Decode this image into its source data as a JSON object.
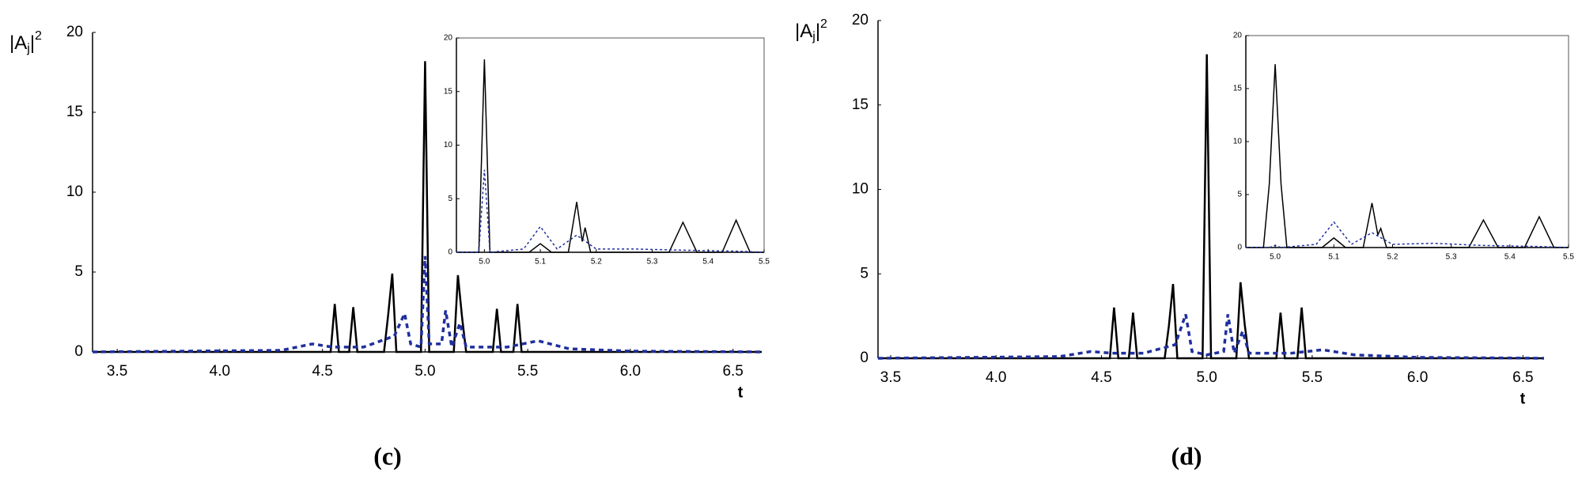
{
  "chart_data": [
    {
      "type": "line",
      "caption": "(c)",
      "ylabel": [
        "|A",
        "j",
        "|",
        "2"
      ],
      "xlabel": "t",
      "xlim": [
        3.38,
        6.64
      ],
      "ylim": [
        0,
        20
      ],
      "xticks": [
        3.5,
        {
          "value": 4,
          "label": "4.0"
        },
        4.5,
        {
          "value": 5,
          "label": "5.0"
        },
        5.5,
        {
          "value": 6,
          "label": "6.0"
        },
        6.5
      ],
      "yticks": [
        0,
        5,
        10,
        15,
        20
      ],
      "series": [
        {
          "color": "#000000",
          "line_style": "solid",
          "x": [
            3.38,
            4.5,
            4.54,
            4.56,
            4.58,
            4.63,
            4.65,
            4.67,
            4.8,
            4.82,
            4.84,
            4.86,
            4.98,
            5.0,
            5.02,
            5.14,
            5.16,
            5.18,
            5.2,
            5.33,
            5.35,
            5.37,
            5.43,
            5.45,
            5.47,
            6.64
          ],
          "values": [
            0,
            0,
            0,
            3,
            0,
            0,
            2.8,
            0,
            0,
            2.3,
            4.9,
            0,
            0,
            18.2,
            0,
            0,
            4.8,
            2.2,
            0,
            0,
            2.7,
            0,
            0,
            3,
            0,
            0
          ]
        },
        {
          "color": "#1f2f9e",
          "line_style": "dashed",
          "x": [
            3.38,
            4.3,
            4.45,
            4.55,
            4.7,
            4.85,
            4.9,
            4.93,
            4.98,
            5.0,
            5.02,
            5.08,
            5.1,
            5.13,
            5.17,
            5.2,
            5.4,
            5.55,
            5.7,
            6.0,
            6.64
          ],
          "values": [
            0,
            0.1,
            0.5,
            0.3,
            0.3,
            1,
            2.4,
            0.5,
            0.3,
            6,
            0.5,
            0.5,
            2.6,
            0.3,
            1.8,
            0.3,
            0.3,
            0.7,
            0.2,
            0.05,
            0
          ]
        }
      ]
    },
    {
      "type": "line",
      "xlim": [
        4.95,
        5.5
      ],
      "ylim": [
        0,
        20
      ],
      "xticks": [
        {
          "value": 5,
          "label": "5.0"
        },
        5.1,
        5.2,
        5.3,
        5.4,
        5.5
      ],
      "yticks": [
        0,
        5,
        10,
        15,
        20
      ],
      "series": [
        {
          "color": "#000000",
          "line_style": "solid",
          "x": [
            4.95,
            4.99,
            5.0,
            5.01,
            5.08,
            5.1,
            5.12,
            5.15,
            5.165,
            5.175,
            5.18,
            5.19,
            5.33,
            5.355,
            5.38,
            5.425,
            5.45,
            5.475,
            5.5
          ],
          "values": [
            0,
            0,
            18,
            0,
            0,
            0.8,
            0,
            0,
            4.7,
            1,
            2.3,
            0,
            0,
            2.8,
            0,
            0,
            3,
            0,
            0
          ]
        },
        {
          "color": "#1f2f9e",
          "line_style": "dashed",
          "x": [
            4.95,
            4.99,
            5.0,
            5.01,
            5.07,
            5.1,
            5.13,
            5.165,
            5.2,
            5.27,
            5.35,
            5.45,
            5.5
          ],
          "values": [
            0,
            0,
            7.7,
            0,
            0.3,
            2.4,
            0.3,
            1.6,
            0.3,
            0.3,
            0.2,
            0.1,
            0
          ]
        }
      ]
    },
    {
      "type": "line",
      "caption": "(d)",
      "ylabel": [
        "|A",
        "j",
        "|",
        "2"
      ],
      "xlabel": "t",
      "xlim": [
        3.44,
        6.6
      ],
      "ylim": [
        0,
        20
      ],
      "xticks": [
        3.5,
        {
          "value": 4,
          "label": "4.0"
        },
        4.5,
        {
          "value": 5,
          "label": "5.0"
        },
        5.5,
        {
          "value": 6,
          "label": "6.0"
        },
        6.5
      ],
      "yticks": [
        0,
        5,
        10,
        15,
        20
      ],
      "series": [
        {
          "color": "#000000",
          "line_style": "solid",
          "x": [
            3.44,
            4.5,
            4.54,
            4.56,
            4.58,
            4.63,
            4.65,
            4.67,
            4.8,
            4.82,
            4.84,
            4.86,
            4.98,
            5.0,
            5.02,
            5.14,
            5.16,
            5.18,
            5.2,
            5.33,
            5.35,
            5.37,
            5.43,
            5.45,
            5.47,
            6.6
          ],
          "values": [
            0,
            0,
            0,
            3,
            0,
            0,
            2.7,
            0,
            0,
            1.9,
            4.4,
            0,
            0,
            18,
            0,
            0,
            4.5,
            2,
            0,
            0,
            2.7,
            0,
            0,
            3,
            0,
            0
          ]
        },
        {
          "color": "#1f2f9e",
          "line_style": "dashed",
          "x": [
            3.44,
            4.3,
            4.45,
            4.55,
            4.7,
            4.85,
            4.9,
            4.93,
            5.0,
            5.08,
            5.1,
            5.13,
            5.17,
            5.2,
            5.4,
            5.55,
            5.7,
            6.0,
            6.6
          ],
          "values": [
            0,
            0.1,
            0.4,
            0.3,
            0.3,
            0.8,
            2.6,
            0.4,
            0.2,
            0.4,
            2.6,
            0.3,
            1.6,
            0.3,
            0.3,
            0.5,
            0.2,
            0.05,
            0
          ]
        }
      ]
    },
    {
      "type": "line",
      "xlim": [
        4.95,
        5.5
      ],
      "ylim": [
        0,
        20
      ],
      "xticks": [
        {
          "value": 5,
          "label": "5.0"
        },
        5.1,
        5.2,
        5.3,
        5.4,
        5.5
      ],
      "yticks": [
        0,
        5,
        10,
        15,
        20
      ],
      "series": [
        {
          "color": "#000000",
          "line_style": "solid",
          "x": [
            4.95,
            4.98,
            4.99,
            5.0,
            5.01,
            5.02,
            5.08,
            5.1,
            5.12,
            5.15,
            5.165,
            5.175,
            5.18,
            5.19,
            5.33,
            5.355,
            5.38,
            5.425,
            5.45,
            5.475,
            5.5
          ],
          "values": [
            0,
            0,
            6,
            17.3,
            6,
            0,
            0,
            0.9,
            0,
            0,
            4.2,
            1.2,
            1.8,
            0,
            0,
            2.6,
            0,
            0,
            2.9,
            0,
            0
          ]
        },
        {
          "color": "#1f2f9e",
          "line_style": "dashed",
          "x": [
            4.95,
            4.99,
            5.0,
            5.01,
            5.07,
            5.1,
            5.13,
            5.165,
            5.2,
            5.27,
            5.35,
            5.45,
            5.5
          ],
          "values": [
            0,
            0,
            0.2,
            0,
            0.3,
            2.4,
            0.3,
            1.4,
            0.3,
            0.4,
            0.2,
            0.1,
            0
          ]
        }
      ]
    }
  ]
}
